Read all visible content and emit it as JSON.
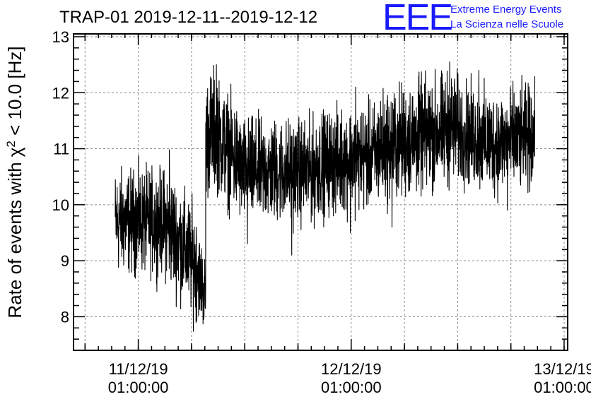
{
  "title": "TRAP-01 2019-12-11--2019-12-12",
  "logo": {
    "mark": "EEE",
    "line1": "Extreme Energy Events",
    "line2": "La Scienza nelle Scuole",
    "color": "#1a1aff"
  },
  "chart_data": {
    "type": "line",
    "title": "TRAP-01 2019-12-11--2019-12-12",
    "xlabel": "",
    "ylabel": "Rate of events with χ² < 10.0 [Hz]",
    "ylabel_parts": {
      "prefix": "Rate of events with χ",
      "sup": "2",
      "suffix": " < 10.0 [Hz]"
    },
    "x_unit": "hours since 11/12/19 01:00:00",
    "xlim": [
      -7.3,
      48.4
    ],
    "ylim": [
      7.4,
      13.05
    ],
    "x_ticks": [
      {
        "x": 0,
        "line1": "11/12/19",
        "line2": "01:00:00"
      },
      {
        "x": 24,
        "line1": "12/12/19",
        "line2": "01:00:00"
      },
      {
        "x": 48,
        "line1": "13/12/19",
        "line2": "01:00:00"
      }
    ],
    "y_ticks": [
      8,
      9,
      10,
      11,
      12,
      13
    ],
    "grid": true,
    "series": [
      {
        "color": "#000000",
        "x_start": -2.6,
        "x_end": 44.7,
        "segments": [
          {
            "x": [
              -2.6,
              3.0
            ],
            "mean": [
              9.7,
              9.7
            ],
            "spread": 0.55
          },
          {
            "x": [
              3.0,
              6.6
            ],
            "mean": [
              9.7,
              8.9
            ],
            "spread": 0.6
          },
          {
            "x": [
              6.6,
              7.6
            ],
            "mean": [
              8.9,
              8.3
            ],
            "spread": 0.45
          },
          {
            "x": [
              7.6,
              9.0
            ],
            "mean": [
              11.2,
              11.4
            ],
            "spread": 0.65
          },
          {
            "x": [
              9.0,
              11.5
            ],
            "mean": [
              11.2,
              10.7
            ],
            "spread": 0.6
          },
          {
            "x": [
              11.5,
              20.0
            ],
            "mean": [
              10.6,
              10.6
            ],
            "spread": 0.55
          },
          {
            "x": [
              20.0,
              27.0
            ],
            "mean": [
              10.7,
              10.9
            ],
            "spread": 0.55
          },
          {
            "x": [
              27.0,
              36.0
            ],
            "mean": [
              11.0,
              11.4
            ],
            "spread": 0.6
          },
          {
            "x": [
              36.0,
              40.0
            ],
            "mean": [
              11.3,
              11.1
            ],
            "spread": 0.55
          },
          {
            "x": [
              40.0,
              44.7
            ],
            "mean": [
              11.1,
              11.2
            ],
            "spread": 0.55
          }
        ],
        "spikes": [
          {
            "x": 3.5,
            "y": 10.98
          },
          {
            "x": 7.3,
            "y": 7.87
          },
          {
            "x": 8.8,
            "y": 12.5
          },
          {
            "x": 12.3,
            "y": 9.3
          },
          {
            "x": 17.3,
            "y": 9.1
          },
          {
            "x": 23.9,
            "y": 9.5
          },
          {
            "x": 31.6,
            "y": 12.3
          },
          {
            "x": 35.1,
            "y": 12.55
          },
          {
            "x": 38.4,
            "y": 12.4
          },
          {
            "x": 41.6,
            "y": 9.9
          },
          {
            "x": 24.5,
            "y": 12.1
          },
          {
            "x": 28.6,
            "y": 9.6
          }
        ]
      }
    ]
  }
}
